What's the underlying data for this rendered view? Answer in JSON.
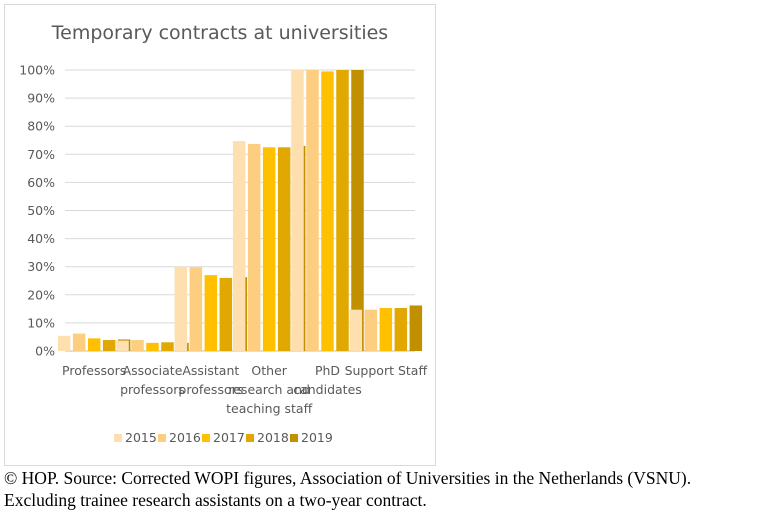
{
  "chart_data": {
    "type": "bar",
    "title": "Temporary contracts at universities",
    "xlabel": "",
    "ylabel": "",
    "ylim": [
      0,
      100
    ],
    "yticks": [
      "0%",
      "10%",
      "20%",
      "30%",
      "40%",
      "50%",
      "60%",
      "70%",
      "80%",
      "90%",
      "100%"
    ],
    "grid": true,
    "legend_position": "bottom",
    "categories": [
      [
        "Professors"
      ],
      [
        "Associate",
        "professors"
      ],
      [
        "Assistant",
        "professors"
      ],
      [
        "Other",
        "research and",
        "teaching staff"
      ],
      [
        "PhD",
        "candidates"
      ],
      [
        "Support Staff"
      ]
    ],
    "series": [
      {
        "name": "2015",
        "color": "#fddfb0",
        "values": [
          5.4,
          3.7,
          30.0,
          74.7,
          100.0,
          14.7
        ]
      },
      {
        "name": "2016",
        "color": "#fdcd80",
        "values": [
          6.2,
          3.9,
          29.8,
          73.7,
          100.0,
          14.7
        ]
      },
      {
        "name": "2017",
        "color": "#ffc000",
        "values": [
          4.5,
          2.9,
          27.0,
          72.5,
          99.5,
          15.3
        ]
      },
      {
        "name": "2018",
        "color": "#e0a800",
        "values": [
          3.9,
          3.1,
          26.0,
          72.5,
          100.0,
          15.3
        ]
      },
      {
        "name": "2019",
        "color": "#c09000",
        "values": [
          4.1,
          2.9,
          26.3,
          73.0,
          100.0,
          16.2
        ]
      }
    ]
  },
  "caption": {
    "line1": "© HOP. Source: Corrected WOPI figures, Association of Universities in the Netherlands (VSNU).",
    "line2": "Excluding trainee research assistants on a two-year contract."
  }
}
